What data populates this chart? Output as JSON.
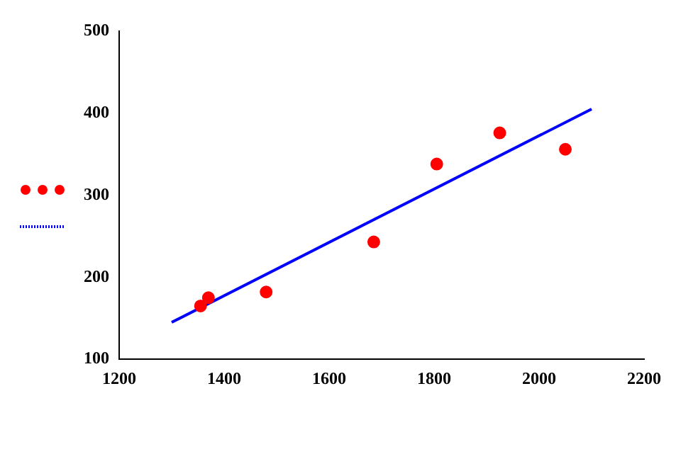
{
  "chart_data": {
    "type": "scatter",
    "xlim": [
      1200,
      2200
    ],
    "xticks": [
      1200,
      1400,
      1600,
      1800,
      2000,
      2200
    ],
    "ylim": [
      100,
      500
    ],
    "yticks": [
      100,
      200,
      300,
      400,
      500
    ],
    "grid": false,
    "series": [
      {
        "type": "scatter",
        "color": "#ff0000",
        "marker": "circle",
        "x": [
          1355,
          1370,
          1480,
          1685,
          1805,
          1925,
          2050
        ],
        "values": [
          165,
          175,
          182,
          243,
          338,
          376,
          356
        ]
      },
      {
        "type": "line",
        "color": "#0000ff",
        "marker": "none",
        "x": [
          1300,
          2100
        ],
        "values": [
          145,
          405
        ]
      }
    ]
  }
}
